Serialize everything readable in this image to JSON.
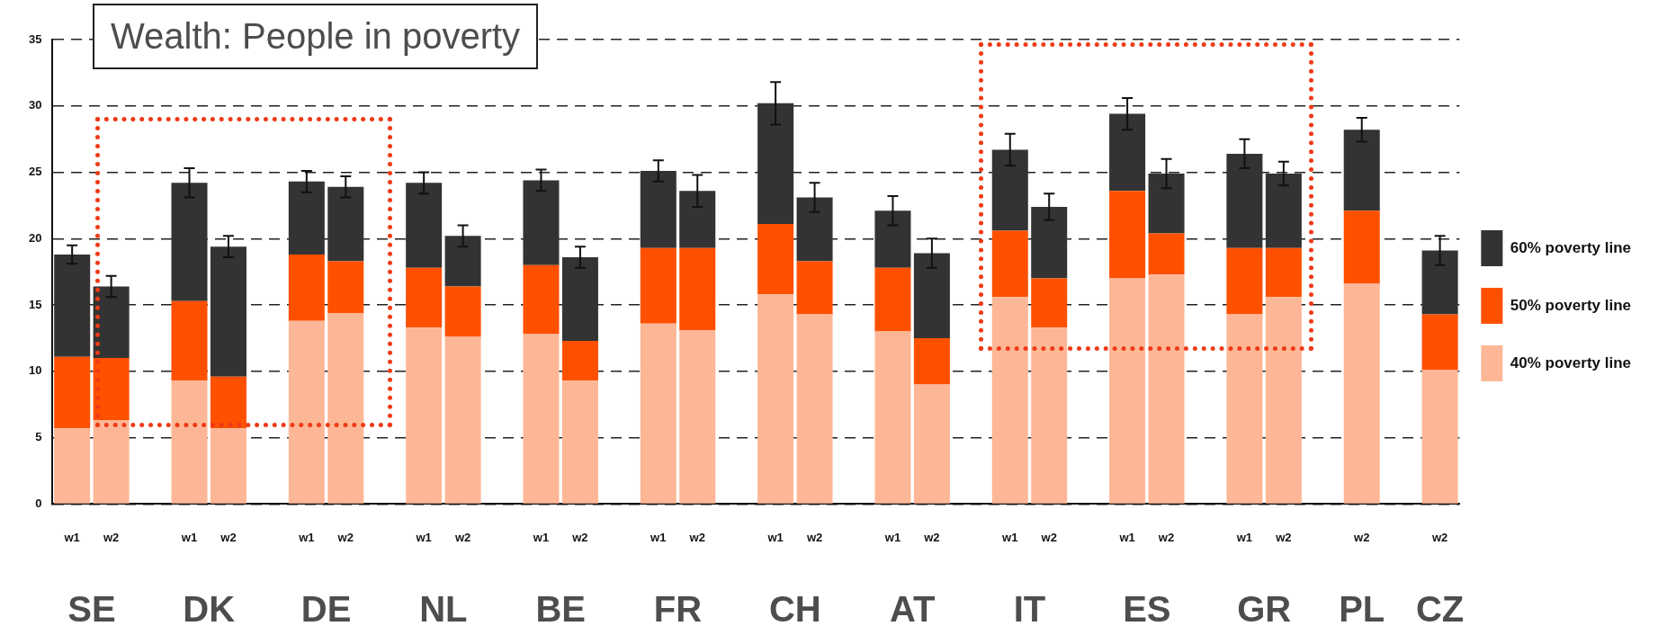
{
  "chart_data": {
    "type": "bar",
    "title": "Wealth: People in poverty",
    "stacked": true,
    "categories": [
      "w1",
      "w2",
      null,
      "w1",
      "w2",
      null,
      "w1",
      "w2",
      null,
      "w1",
      "w2",
      null,
      "w1",
      "w2",
      null,
      "w1",
      "w2",
      null,
      "w1",
      "w2",
      null,
      "w1",
      "w2",
      null,
      "w1",
      "w2",
      null,
      "w1",
      "w2",
      null,
      "w1",
      "w2",
      null,
      "w2",
      null,
      "w2"
    ],
    "series": [
      {
        "name": "40% poverty line",
        "color": "#fdb797",
        "values": [
          5.7,
          6.3,
          null,
          9.3,
          5.7,
          null,
          13.8,
          14.4,
          null,
          13.3,
          12.6,
          null,
          12.8,
          9.3,
          null,
          13.6,
          13.1,
          null,
          15.8,
          14.3,
          null,
          13.0,
          9.0,
          null,
          15.6,
          13.3,
          null,
          17.0,
          17.3,
          null,
          14.3,
          15.6,
          null,
          16.6,
          null,
          10.1
        ]
      },
      {
        "name": "50% poverty line",
        "color": "#ff5000",
        "values": [
          5.4,
          4.7,
          null,
          6.0,
          3.9,
          null,
          5.0,
          3.9,
          null,
          4.5,
          3.8,
          null,
          5.2,
          3.0,
          null,
          5.7,
          6.2,
          null,
          5.3,
          4.0,
          null,
          4.8,
          3.5,
          null,
          5.0,
          3.7,
          null,
          6.6,
          3.1,
          null,
          5.0,
          3.7,
          null,
          5.5,
          null,
          4.2
        ]
      },
      {
        "name": "60% poverty line",
        "color": "#333333",
        "values": [
          7.7,
          5.4,
          null,
          8.9,
          9.8,
          null,
          5.5,
          5.6,
          null,
          6.4,
          3.8,
          null,
          6.4,
          6.3,
          null,
          5.8,
          4.3,
          null,
          9.1,
          4.8,
          null,
          4.3,
          6.4,
          null,
          6.1,
          5.4,
          null,
          5.8,
          4.5,
          null,
          7.1,
          5.6,
          null,
          6.1,
          null,
          4.8
        ],
        "errors": [
          0.7,
          0.8,
          null,
          1.1,
          0.8,
          null,
          0.8,
          0.8,
          null,
          0.8,
          0.8,
          null,
          0.8,
          0.8,
          null,
          0.8,
          1.2,
          null,
          1.6,
          1.1,
          null,
          1.1,
          1.1,
          null,
          1.2,
          1.0,
          null,
          1.2,
          1.1,
          null,
          1.1,
          0.9,
          null,
          0.9,
          null,
          1.1
        ]
      }
    ],
    "ylim": [
      0,
      35
    ],
    "yticks": [
      0,
      5,
      10,
      15,
      20,
      25,
      30,
      35
    ],
    "grid": "y",
    "legend": "right",
    "annotations": [
      "SE",
      "DK",
      "DE",
      "NL",
      "BE",
      "FR",
      "CH",
      "AT",
      "IT",
      "ES",
      "GR",
      "PL",
      "CZ"
    ]
  }
}
